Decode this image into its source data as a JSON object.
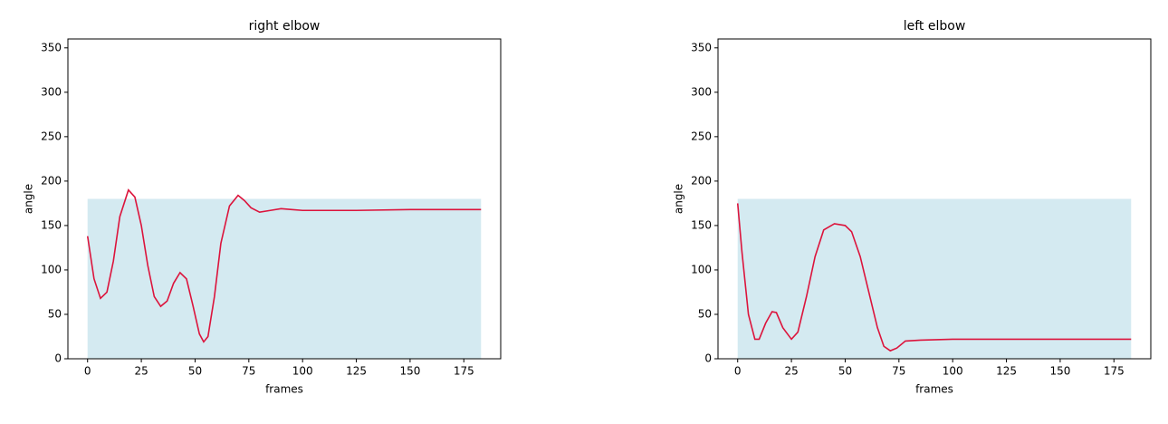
{
  "chart_data": [
    {
      "type": "line",
      "title": "right elbow",
      "xlabel": "frames",
      "ylabel": "angle",
      "x": [
        0,
        3,
        6,
        9,
        12,
        15,
        19,
        22,
        25,
        28,
        31,
        34,
        37,
        40,
        43,
        46,
        49,
        52,
        54,
        56,
        59,
        62,
        66,
        70,
        73,
        76,
        80,
        85,
        90,
        95,
        100,
        125,
        150,
        183
      ],
      "values": [
        138,
        90,
        68,
        75,
        110,
        160,
        190,
        182,
        150,
        105,
        70,
        59,
        65,
        85,
        97,
        90,
        60,
        28,
        19,
        25,
        70,
        130,
        172,
        184,
        178,
        170,
        165,
        167,
        169,
        168,
        167,
        167,
        168,
        168
      ],
      "color": "#dc143c",
      "band_ylim": [
        0,
        180
      ],
      "band_color": "#d4eaf1",
      "xlim": [
        -9.15,
        192.15
      ],
      "ylim": [
        0,
        360
      ],
      "xticks": [
        0,
        25,
        50,
        75,
        100,
        125,
        150,
        175
      ],
      "yticks": [
        0,
        50,
        100,
        150,
        200,
        250,
        300,
        350
      ]
    },
    {
      "type": "line",
      "title": "left elbow",
      "xlabel": "frames",
      "ylabel": "angle",
      "x": [
        0,
        2,
        5,
        8,
        10,
        13,
        16,
        18,
        21,
        25,
        28,
        32,
        36,
        40,
        45,
        50,
        53,
        57,
        61,
        65,
        68,
        71,
        74,
        78,
        85,
        100,
        125,
        150,
        183
      ],
      "values": [
        175,
        120,
        50,
        22,
        22,
        40,
        53,
        52,
        35,
        22,
        30,
        70,
        115,
        145,
        152,
        150,
        143,
        115,
        75,
        35,
        14,
        9,
        12,
        20,
        21,
        22,
        22,
        22,
        22
      ],
      "color": "#dc143c",
      "band_ylim": [
        0,
        180
      ],
      "band_color": "#d4eaf1",
      "xlim": [
        -9.15,
        192.15
      ],
      "ylim": [
        0,
        360
      ],
      "xticks": [
        0,
        25,
        50,
        75,
        100,
        125,
        150,
        175
      ],
      "yticks": [
        0,
        50,
        100,
        150,
        200,
        250,
        300,
        350
      ]
    }
  ]
}
